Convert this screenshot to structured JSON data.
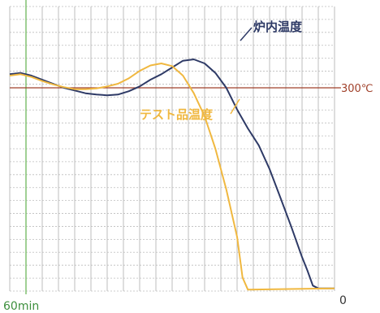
{
  "chart_data": {
    "type": "line",
    "x_label_left": "60min",
    "y_label_bottom_right": "0",
    "reference_line": {
      "label": "300℃",
      "value": 300
    },
    "x_unit": "min",
    "xlim": [
      60,
      0
    ],
    "ylim": [
      0,
      420
    ],
    "grid": true,
    "legend": "inline labels",
    "series": [
      {
        "name": "炉内温度",
        "color": "#2e3a66",
        "points": [
          [
            60,
            320
          ],
          [
            58,
            322
          ],
          [
            56,
            318
          ],
          [
            54,
            312
          ],
          [
            52,
            306
          ],
          [
            50,
            300
          ],
          [
            48,
            296
          ],
          [
            46,
            292
          ],
          [
            44,
            290
          ],
          [
            42,
            289
          ],
          [
            40,
            290
          ],
          [
            38,
            295
          ],
          [
            36,
            302
          ],
          [
            34,
            312
          ],
          [
            32,
            320
          ],
          [
            30,
            330
          ],
          [
            28,
            340
          ],
          [
            26,
            342
          ],
          [
            24,
            336
          ],
          [
            22,
            322
          ],
          [
            20,
            300
          ],
          [
            18,
            268
          ],
          [
            16,
            240
          ],
          [
            14,
            215
          ],
          [
            12,
            180
          ],
          [
            10,
            138
          ],
          [
            8,
            95
          ],
          [
            6,
            50
          ],
          [
            5,
            30
          ],
          [
            4,
            8
          ],
          [
            3,
            4
          ],
          [
            0,
            4
          ]
        ]
      },
      {
        "name": "テスト品温度",
        "color": "#f0b840",
        "points": [
          [
            60,
            318
          ],
          [
            58,
            320
          ],
          [
            56,
            316
          ],
          [
            54,
            310
          ],
          [
            52,
            305
          ],
          [
            50,
            301
          ],
          [
            48,
            298
          ],
          [
            46,
            298
          ],
          [
            44,
            299
          ],
          [
            42,
            302
          ],
          [
            40,
            306
          ],
          [
            38,
            314
          ],
          [
            36,
            325
          ],
          [
            34,
            333
          ],
          [
            32,
            336
          ],
          [
            30,
            332
          ],
          [
            28,
            318
          ],
          [
            26,
            292
          ],
          [
            24,
            258
          ],
          [
            22,
            210
          ],
          [
            20,
            150
          ],
          [
            18,
            80
          ],
          [
            17,
            20
          ],
          [
            16,
            2
          ],
          [
            0,
            4
          ]
        ]
      }
    ],
    "series_labels": [
      "炉内温度",
      "テスト品温度"
    ]
  },
  "colors": {
    "grid": "#bdbdbd",
    "start_line": "#80c070",
    "reference": "#a0402a",
    "axis_label_left": "#3d8f3d"
  }
}
